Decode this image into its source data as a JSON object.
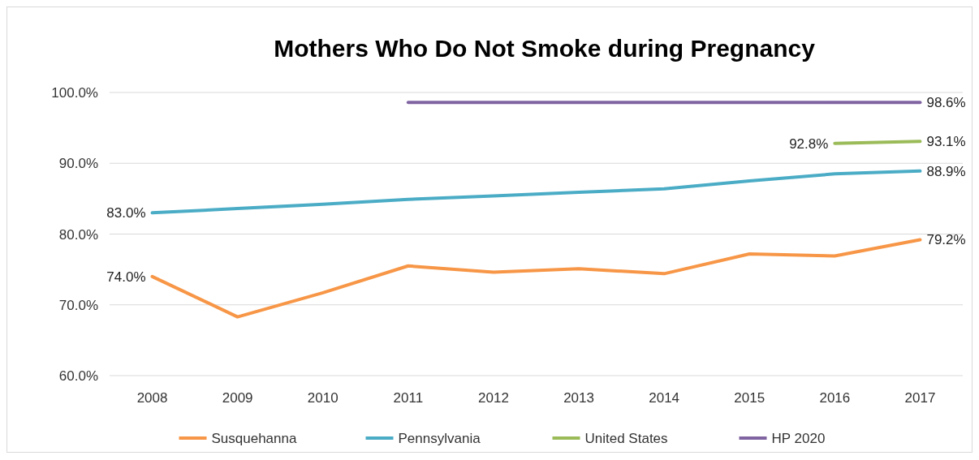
{
  "chart_data": {
    "type": "line",
    "title": "Mothers Who Do Not Smoke during Pregnancy",
    "categories": [
      "2008",
      "2009",
      "2010",
      "2011",
      "2012",
      "2013",
      "2014",
      "2015",
      "2016",
      "2017"
    ],
    "ylim": [
      60,
      100
    ],
    "yticks": [
      {
        "value": 60,
        "label": "60.0%"
      },
      {
        "value": 70,
        "label": "70.0%"
      },
      {
        "value": 80,
        "label": "80.0%"
      },
      {
        "value": 90,
        "label": "90.0%"
      },
      {
        "value": 100,
        "label": "100.0%"
      }
    ],
    "grid": "y",
    "legend": "bottom",
    "marker": "none",
    "line_style": "solid",
    "series": [
      {
        "name": "Susquehanna",
        "color": "#f79646",
        "values": [
          74.0,
          68.3,
          71.7,
          75.5,
          74.6,
          75.1,
          74.4,
          77.2,
          76.9,
          79.2
        ],
        "value_labels": [
          "74.0%",
          null,
          null,
          null,
          null,
          null,
          null,
          null,
          null,
          "79.2%"
        ]
      },
      {
        "name": "Pennsylvania",
        "color": "#4bacc6",
        "values": [
          83.0,
          83.6,
          84.2,
          84.9,
          85.4,
          85.9,
          86.4,
          87.5,
          88.5,
          88.9
        ],
        "value_labels": [
          "83.0%",
          null,
          null,
          null,
          null,
          null,
          null,
          null,
          null,
          "88.9%"
        ]
      },
      {
        "name": "United States",
        "color": "#9bbb59",
        "values": [
          null,
          null,
          null,
          null,
          null,
          null,
          null,
          null,
          92.8,
          93.1
        ],
        "value_labels": [
          null,
          null,
          null,
          null,
          null,
          null,
          null,
          null,
          "92.8%",
          "93.1%"
        ]
      },
      {
        "name": "HP 2020",
        "color": "#8064a2",
        "values": [
          null,
          null,
          null,
          98.6,
          98.6,
          98.6,
          98.6,
          98.6,
          98.6,
          98.6
        ],
        "value_labels": [
          null,
          null,
          null,
          null,
          null,
          null,
          null,
          null,
          null,
          "98.6%"
        ]
      }
    ]
  }
}
